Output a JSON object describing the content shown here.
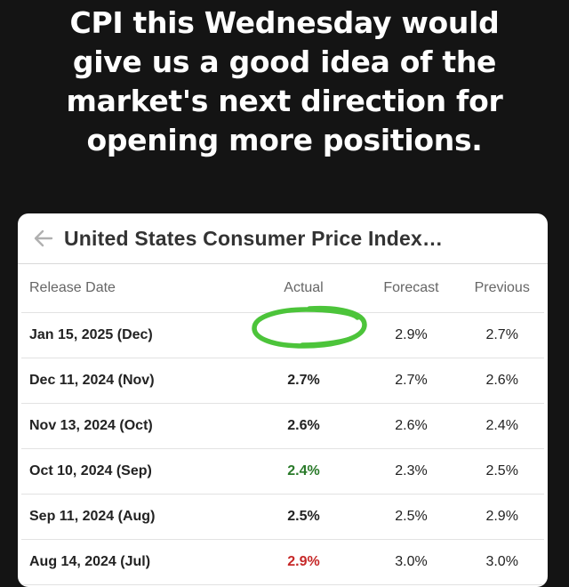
{
  "caption": {
    "lines": [
      "CPI this Wednesday would",
      "give us a good idea of the",
      "market's next direction for",
      "opening more positions."
    ]
  },
  "card": {
    "title": "United States Consumer Price Index…",
    "back_icon": "arrow-left-icon"
  },
  "table": {
    "headers": {
      "date": "Release Date",
      "actual": "Actual",
      "forecast": "Forecast",
      "previous": "Previous"
    },
    "rows": [
      {
        "date": "Jan 15, 2025 (Dec)",
        "actual": "",
        "forecast": "2.9%",
        "previous": "2.7%"
      },
      {
        "date": "Dec 11, 2024 (Nov)",
        "actual": "2.7%",
        "forecast": "2.7%",
        "previous": "2.6%"
      },
      {
        "date": "Nov 13, 2024 (Oct)",
        "actual": "2.6%",
        "forecast": "2.6%",
        "previous": "2.4%"
      },
      {
        "date": "Oct 10, 2024 (Sep)",
        "actual": "2.4%",
        "forecast": "2.3%",
        "previous": "2.5%"
      },
      {
        "date": "Sep 11, 2024 (Aug)",
        "actual": "2.5%",
        "forecast": "2.5%",
        "previous": "2.9%"
      },
      {
        "date": "Aug 14, 2024 (Jul)",
        "actual": "2.9%",
        "forecast": "3.0%",
        "previous": "3.0%"
      }
    ]
  },
  "colors": {
    "background": "#141414",
    "actual_below_forecast": "#c62828",
    "actual_above_forecast": "#2a7a2a",
    "highlight_circle": "#4cc43a"
  }
}
